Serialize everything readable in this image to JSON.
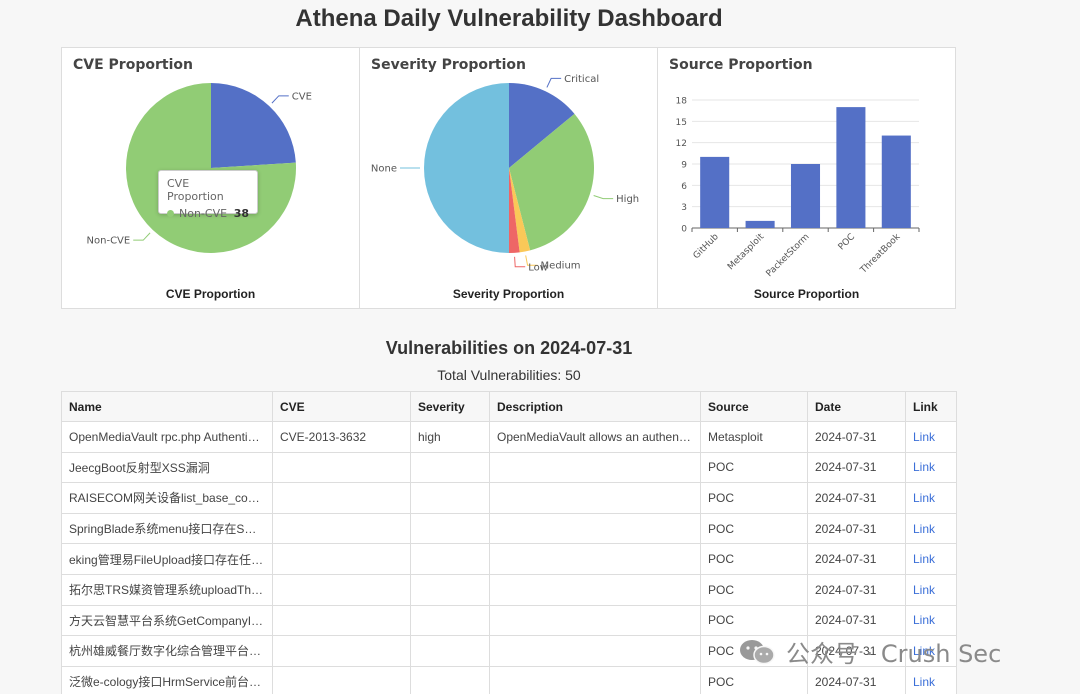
{
  "page": {
    "title": "Athena Daily Vulnerability Dashboard"
  },
  "colors": {
    "blue": "#5470c6",
    "green": "#91cc75",
    "yellow": "#fac858",
    "red": "#ee6666",
    "cyan": "#73c0de"
  },
  "charts": {
    "cve": {
      "title": "CVE Proportion",
      "caption": "CVE Proportion",
      "tooltip": {
        "title": "CVE Proportion",
        "name": "Non-CVE",
        "value": "38"
      }
    },
    "severity": {
      "title": "Severity Proportion",
      "caption": "Severity Proportion"
    },
    "source": {
      "title": "Source Proportion",
      "caption": "Source Proportion"
    }
  },
  "chart_data": [
    {
      "type": "pie",
      "title": "CVE Proportion",
      "labels": [
        "CVE",
        "Non-CVE"
      ],
      "values": [
        12,
        38
      ]
    },
    {
      "type": "pie",
      "title": "Severity Proportion",
      "labels": [
        "Critical",
        "High",
        "Medium",
        "Low",
        "None"
      ],
      "values": [
        7,
        16,
        1,
        1,
        25
      ]
    },
    {
      "type": "bar",
      "title": "Source Proportion",
      "categories": [
        "GitHub",
        "Metasploit",
        "PacketStorm",
        "POC",
        "ThreatBook"
      ],
      "values": [
        10,
        1,
        9,
        17,
        13
      ],
      "ylim": [
        0,
        18
      ],
      "yticks": [
        "0",
        "3",
        "6",
        "9",
        "12",
        "15",
        "18"
      ]
    }
  ],
  "section": {
    "title": "Vulnerabilities on 2024-07-31",
    "total": "Total Vulnerabilities: 50"
  },
  "table": {
    "headers": [
      "Name",
      "CVE",
      "Severity",
      "Description",
      "Source",
      "Date",
      "Link"
    ],
    "rows": [
      [
        "OpenMediaVault rpc.php Authenticated Cron Remote Code Execution",
        "CVE-2013-3632",
        "high",
        "OpenMediaVault allows an authenticated user to create cron jobs",
        "Metasploit",
        "2024-07-31",
        "Link"
      ],
      [
        "JeecgBoot反射型XSS漏洞",
        "",
        "",
        "",
        "POC",
        "2024-07-31",
        "Link"
      ],
      [
        "RAISECOM网关设备list_base_config.php远程命令执行漏洞",
        "",
        "",
        "",
        "POC",
        "2024-07-31",
        "Link"
      ],
      [
        "SpringBlade系统menu接口存在SQL注入漏洞",
        "",
        "",
        "",
        "POC",
        "2024-07-31",
        "Link"
      ],
      [
        "eking管理易FileUpload接口存在任意文件上传漏洞",
        "",
        "",
        "",
        "POC",
        "2024-07-31",
        "Link"
      ],
      [
        "拓尔思TRS媒资管理系统uploadThumb任意文件上传漏洞",
        "",
        "",
        "",
        "POC",
        "2024-07-31",
        "Link"
      ],
      [
        "方天云智慧平台系统GetCompanyItem接口存在SQL注入漏洞",
        "",
        "",
        "",
        "POC",
        "2024-07-31",
        "Link"
      ],
      [
        "杭州雄威餐厅数字化综合管理平台存在任意文件读取漏洞",
        "",
        "",
        "",
        "POC",
        "2024-07-31",
        "Link"
      ],
      [
        "泛微e-cology接口HrmService前台SQL注入漏洞",
        "",
        "",
        "",
        "POC",
        "2024-07-31",
        "Link"
      ]
    ]
  },
  "watermark": {
    "text": "公众号 · Crush Sec",
    "icon": "wechat-icon"
  }
}
